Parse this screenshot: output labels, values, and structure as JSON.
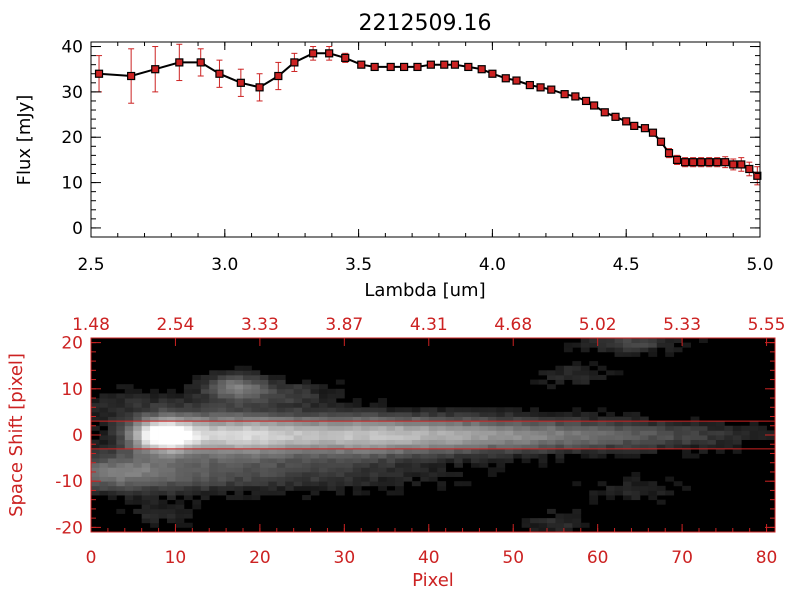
{
  "chart_data": [
    {
      "type": "line",
      "title": "2212509.16",
      "xlabel": "Lambda [um]",
      "ylabel": "Flux [mJy]",
      "xlim": [
        2.5,
        5.0
      ],
      "ylim": [
        -2,
        41
      ],
      "xticks": [
        "2.5",
        "3.0",
        "3.5",
        "4.0",
        "4.5",
        "5.0"
      ],
      "yticks": [
        "0",
        "10",
        "20",
        "30",
        "40"
      ],
      "colors": {
        "line": "#000000",
        "marker": "#cc2222",
        "errorbar": "#cc2222",
        "axes": "#000000"
      },
      "series": [
        {
          "x": [
            2.53,
            2.65,
            2.74,
            2.83,
            2.91,
            2.98,
            3.06,
            3.13,
            3.2,
            3.26,
            3.33,
            3.39,
            3.45,
            3.51,
            3.56,
            3.62,
            3.67,
            3.72,
            3.77,
            3.82,
            3.86,
            3.91,
            3.96,
            4.0,
            4.05,
            4.09,
            4.14,
            4.18,
            4.22,
            4.27,
            4.31,
            4.35,
            4.38,
            4.42,
            4.46,
            4.5,
            4.53,
            4.57,
            4.6,
            4.63,
            4.66,
            4.69,
            4.72,
            4.75,
            4.78,
            4.81,
            4.84,
            4.87,
            4.9,
            4.93,
            4.96,
            4.99
          ],
          "y": [
            34,
            33.5,
            35,
            36.5,
            36.5,
            34,
            32,
            31,
            33.5,
            36.5,
            38.5,
            38.5,
            37.5,
            36,
            35.5,
            35.5,
            35.5,
            35.5,
            36,
            36,
            36,
            35.5,
            35,
            34,
            33,
            32.5,
            31.5,
            31,
            30.5,
            29.5,
            29,
            28,
            27,
            25.5,
            24.5,
            23.5,
            22.5,
            22,
            21,
            19,
            16.5,
            15,
            14.5,
            14.5,
            14.5,
            14.5,
            14.5,
            14.5,
            14,
            14,
            13,
            11.5
          ],
          "err": [
            4,
            6,
            5,
            4,
            3,
            3,
            3,
            3,
            3,
            2,
            1.5,
            1.5,
            1,
            0.6,
            0.6,
            0.6,
            0.6,
            0.6,
            0.6,
            0.6,
            0.6,
            0.6,
            0.6,
            0.6,
            0.6,
            0.6,
            0.6,
            0.6,
            0.6,
            0.6,
            0.6,
            0.6,
            0.6,
            0.6,
            0.6,
            0.6,
            0.6,
            0.6,
            0.6,
            0.8,
            1,
            1,
            1,
            1,
            1,
            1,
            1,
            1.2,
            1.2,
            1.5,
            1.5,
            2
          ]
        }
      ]
    },
    {
      "type": "heatmap",
      "xlabel": "Pixel",
      "ylabel": "Space Shift [pixel]",
      "xlim": [
        0,
        81
      ],
      "ylim": [
        -21,
        21
      ],
      "xticks": [
        "0",
        "10",
        "20",
        "30",
        "40",
        "50",
        "60",
        "70",
        "80"
      ],
      "yticks": [
        "-20",
        "-10",
        "0",
        "10",
        "20"
      ],
      "top_axis_ticks": [
        "1.48",
        "2.54",
        "3.33",
        "3.87",
        "4.31",
        "4.68",
        "5.02",
        "5.33",
        "5.55"
      ],
      "aperture_lines": [
        3,
        -3
      ],
      "colormap": "grayscale",
      "colors": {
        "axes": "#cc2222",
        "aperture": "#cc2222",
        "background": "#000000"
      },
      "blobs": [
        {
          "x": 8.5,
          "y": 0,
          "sx": 2.5,
          "sy": 2.3,
          "v": 1.0
        },
        {
          "x": 16,
          "y": 0,
          "sx": 6,
          "sy": 3,
          "v": 0.62
        },
        {
          "x": 30,
          "y": 0,
          "sx": 9,
          "sy": 3,
          "v": 0.55
        },
        {
          "x": 45,
          "y": 0,
          "sx": 10,
          "sy": 2.6,
          "v": 0.4
        },
        {
          "x": 60,
          "y": 0,
          "sx": 9,
          "sy": 2.3,
          "v": 0.22
        },
        {
          "x": 72,
          "y": 0,
          "sx": 6,
          "sy": 2,
          "v": 0.1
        },
        {
          "x": 17,
          "y": 10.5,
          "sx": 2.5,
          "sy": 2,
          "v": 0.38
        },
        {
          "x": 23,
          "y": 9,
          "sx": 4,
          "sy": 2,
          "v": 0.18
        },
        {
          "x": 3,
          "y": -8,
          "sx": 5,
          "sy": 3,
          "v": 0.32
        },
        {
          "x": 12,
          "y": -8,
          "sx": 8,
          "sy": 3,
          "v": 0.2
        },
        {
          "x": 28,
          "y": -8,
          "sx": 10,
          "sy": 3,
          "v": 0.14
        },
        {
          "x": 6,
          "y": 6,
          "sx": 8,
          "sy": 3,
          "v": 0.12
        },
        {
          "x": 64,
          "y": 20,
          "sx": 4,
          "sy": 1.5,
          "v": 0.22
        },
        {
          "x": 57,
          "y": 13,
          "sx": 3,
          "sy": 2,
          "v": 0.12
        },
        {
          "x": 8,
          "y": -17,
          "sx": 3,
          "sy": 2,
          "v": 0.1
        },
        {
          "x": 55,
          "y": -19,
          "sx": 3,
          "sy": 2,
          "v": 0.12
        },
        {
          "x": 64,
          "y": -12,
          "sx": 4,
          "sy": 2,
          "v": 0.1
        }
      ]
    }
  ]
}
